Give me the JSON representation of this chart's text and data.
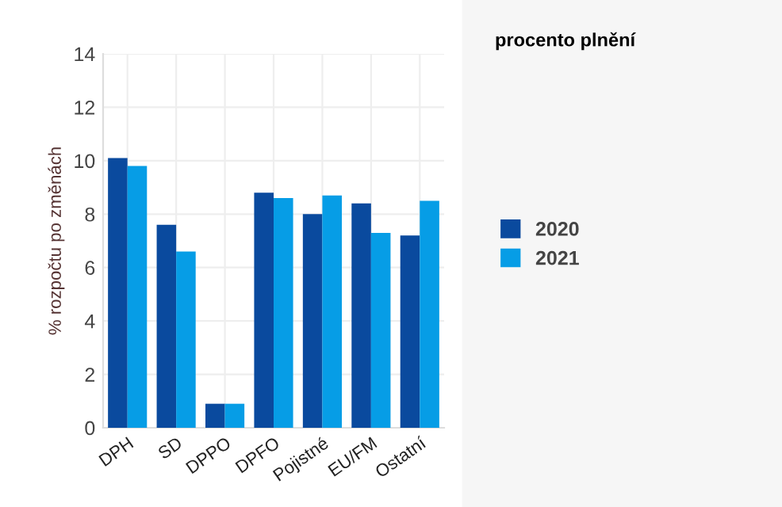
{
  "chart_data": {
    "type": "bar",
    "ylabel": "% rozpočtu po změnách",
    "legend_title": "procento plnění",
    "categories": [
      "DPH",
      "SD",
      "DPPO",
      "DPFO",
      "Pojistné",
      "EU/FM",
      "Ostatní"
    ],
    "series": [
      {
        "name": "2020",
        "color": "#0a4a9e",
        "values": [
          10.1,
          7.6,
          0.9,
          8.8,
          8.0,
          8.4,
          7.2
        ]
      },
      {
        "name": "2021",
        "color": "#069de6",
        "values": [
          9.8,
          6.6,
          0.9,
          8.6,
          8.7,
          7.3,
          8.5
        ]
      }
    ],
    "ylim": [
      0,
      14
    ],
    "yticks": [
      0,
      2,
      4,
      6,
      8,
      10,
      12,
      14
    ],
    "grid": true,
    "legend": "right"
  }
}
